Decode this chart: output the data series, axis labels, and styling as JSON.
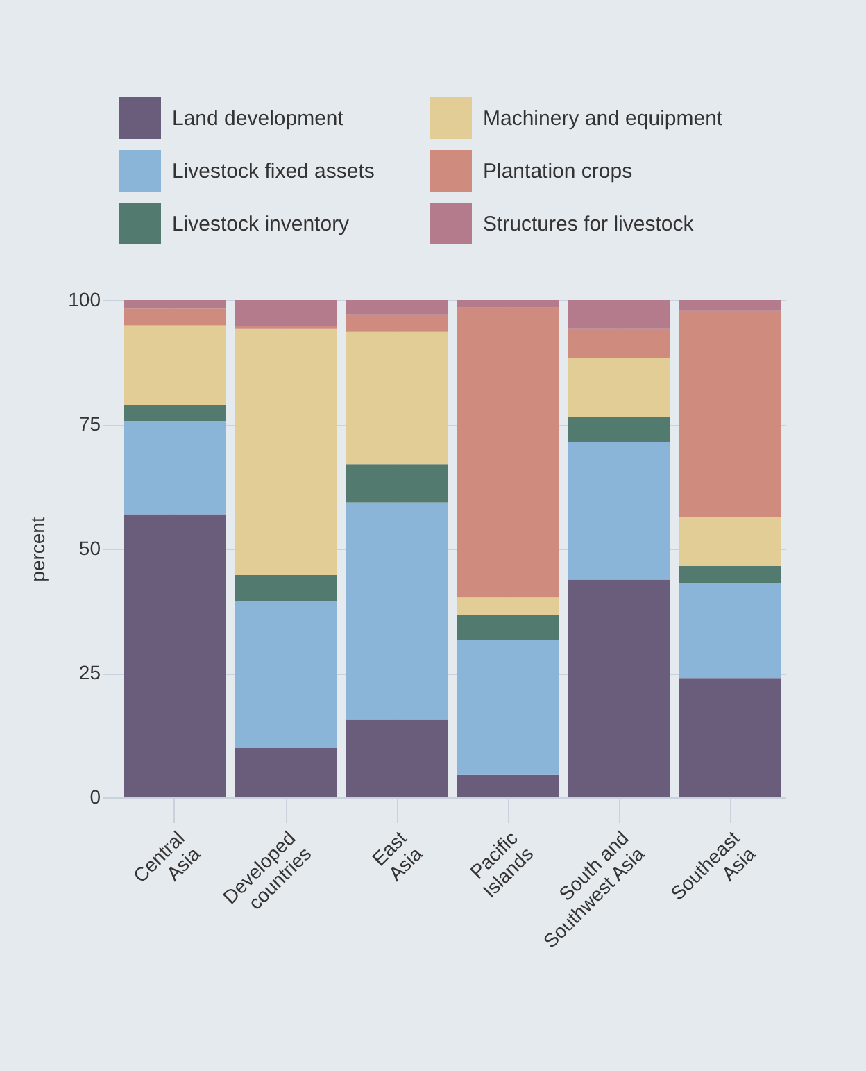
{
  "chart_data": {
    "type": "bar",
    "stacked": true,
    "ylabel": "percent",
    "categories": [
      "Central Asia",
      "Developed countries",
      "East Asia",
      "Pacific Islands",
      "South and Southwest Asia",
      "Southeast Asia"
    ],
    "series": [
      {
        "name": "Land development",
        "color": "#6a5d7b",
        "values": [
          56.9,
          9.9,
          15.7,
          4.5,
          43.8,
          24.0
        ]
      },
      {
        "name": "Livestock fixed assets",
        "color": "#8ab4d8",
        "values": [
          18.8,
          29.5,
          43.6,
          27.1,
          27.7,
          19.1
        ]
      },
      {
        "name": "Livestock inventory",
        "color": "#527a6f",
        "values": [
          3.2,
          5.3,
          7.7,
          5.0,
          4.9,
          3.4
        ]
      },
      {
        "name": "Machinery and equipment",
        "color": "#e3cd96",
        "values": [
          16.0,
          49.6,
          26.6,
          3.6,
          11.9,
          9.8
        ]
      },
      {
        "name": "Plantation crops",
        "color": "#cf8c7e",
        "values": [
          3.4,
          0.4,
          3.5,
          58.3,
          6.0,
          41.5
        ]
      },
      {
        "name": "Structures for livestock",
        "color": "#b47b8c",
        "values": [
          1.7,
          5.3,
          2.9,
          1.5,
          5.7,
          2.2
        ]
      }
    ],
    "ylim": [
      0,
      100
    ],
    "yticks": [
      0,
      25,
      50,
      75,
      100
    ],
    "grid": true,
    "legend": "top"
  }
}
